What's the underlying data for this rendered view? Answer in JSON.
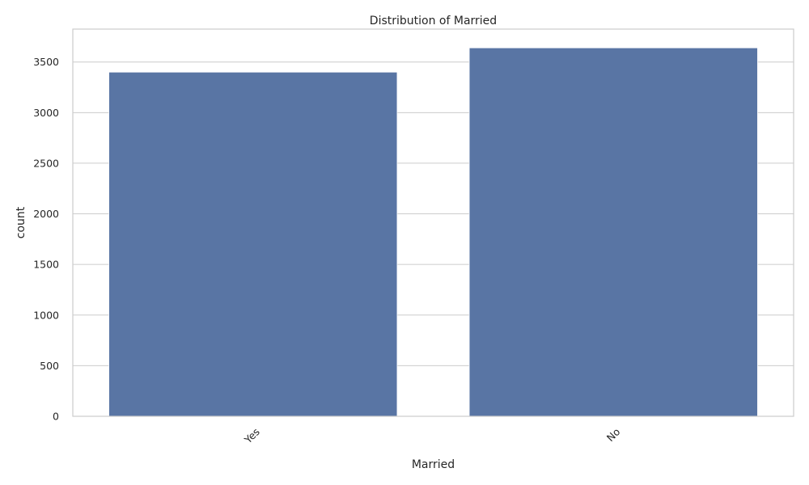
{
  "chart_data": {
    "type": "bar",
    "title": "Distribution of Married",
    "xlabel": "Married",
    "ylabel": "count",
    "categories": [
      "Yes",
      "No"
    ],
    "values": [
      3400,
      3640
    ],
    "ylim": [
      0,
      3825
    ],
    "yticks": [
      0,
      500,
      1000,
      1500,
      2000,
      2500,
      3000,
      3500
    ],
    "grid": "horizontal",
    "bar_color": "#5975a4",
    "x_tick_rotation_degrees": 45
  }
}
